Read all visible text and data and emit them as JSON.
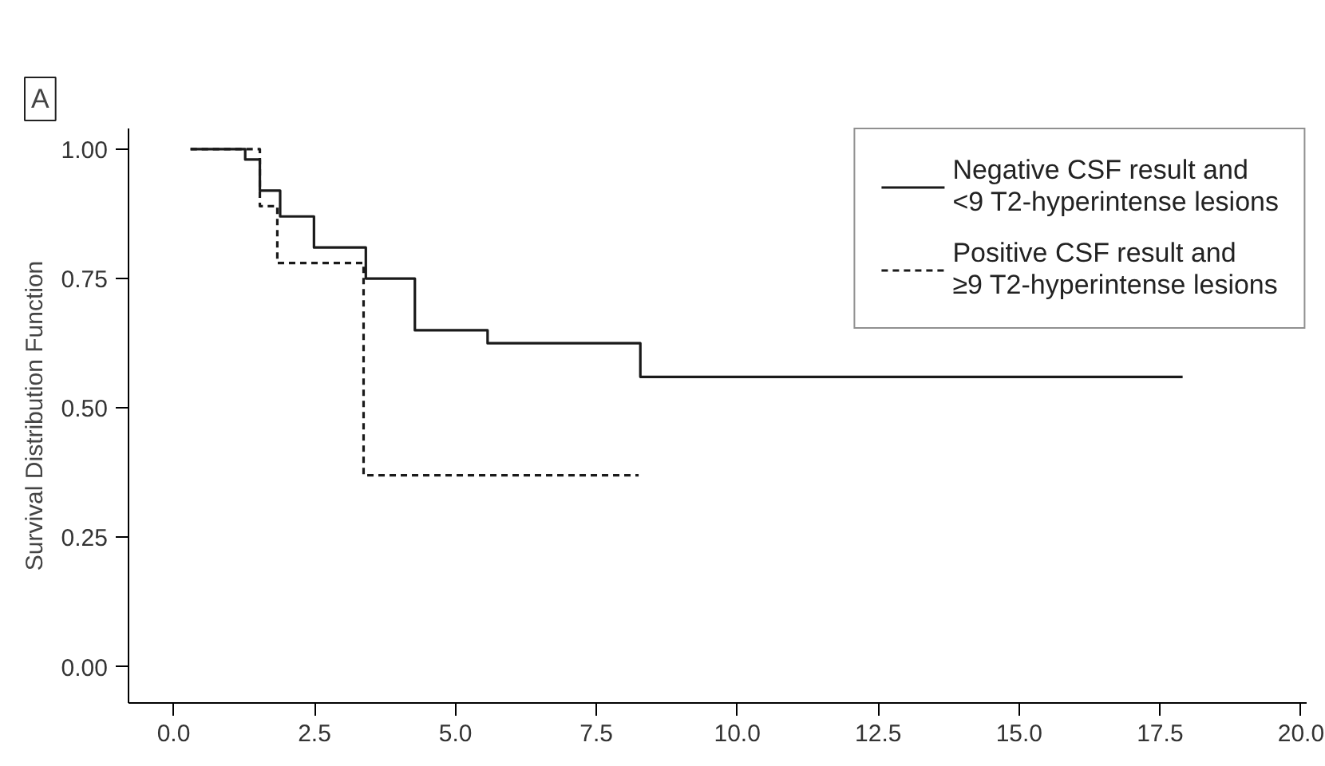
{
  "chart_data": {
    "type": "step",
    "ylabel": "Survival Distribution Function",
    "annotations": [
      "A"
    ],
    "xlim": [
      -0.8,
      20.1
    ],
    "ylim": [
      -0.07,
      1.04
    ],
    "xticks": [
      {
        "value": 0,
        "label": "0.0"
      },
      {
        "value": 2.5,
        "label": "2.5"
      },
      {
        "value": 5,
        "label": "5.0"
      },
      {
        "value": 7.5,
        "label": "7.5"
      },
      {
        "value": 10,
        "label": "10.0"
      },
      {
        "value": 12.5,
        "label": "12.5"
      },
      {
        "value": 15,
        "label": "15.0"
      },
      {
        "value": 17.5,
        "label": "17.5"
      },
      {
        "value": 20,
        "label": "20.0"
      }
    ],
    "yticks": [
      {
        "value": 0,
        "label": "0.00"
      },
      {
        "value": 0.25,
        "label": "0.25"
      },
      {
        "value": 0.5,
        "label": "0.50"
      },
      {
        "value": 0.75,
        "label": "0.75"
      },
      {
        "value": 1,
        "label": "1.00"
      }
    ],
    "grid": false,
    "legend": "top right",
    "marker": "none",
    "series": [
      {
        "name": "Negative CSF result and\n<9 T2-hyperintense lesions",
        "color": "#1a1a1a",
        "line_style": "solid",
        "x": [
          0.3,
          1.27,
          1.53,
          1.89,
          2.49,
          3.41,
          4.28,
          5.57,
          8.28,
          17.9
        ],
        "values": [
          1.0,
          0.98,
          0.92,
          0.87,
          0.81,
          0.75,
          0.65,
          0.625,
          0.56,
          0.56
        ]
      },
      {
        "name": "Positive CSF result and\n≥9 T2-hyperintense lesions",
        "color": "#1a1a1a",
        "line_style": "dashed",
        "x": [
          0.3,
          1.53,
          1.84,
          3.37,
          8.25
        ],
        "values": [
          1.0,
          0.89,
          0.78,
          0.37,
          0.37
        ]
      }
    ]
  }
}
